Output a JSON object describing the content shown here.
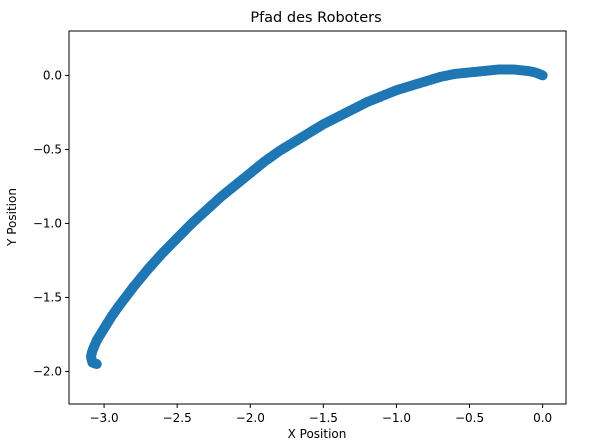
{
  "chart_data": {
    "type": "scatter",
    "title": "Pfad des Roboters",
    "xlabel": "X Position",
    "ylabel": "Y Position",
    "xlim": [
      -3.24,
      0.16
    ],
    "ylim": [
      -2.22,
      0.3
    ],
    "xticks": [
      {
        "value": -3.0,
        "label": "−3.0"
      },
      {
        "value": -2.5,
        "label": "−2.5"
      },
      {
        "value": -2.0,
        "label": "−2.0"
      },
      {
        "value": -1.5,
        "label": "−1.5"
      },
      {
        "value": -1.0,
        "label": "−1.0"
      },
      {
        "value": -0.5,
        "label": "−0.5"
      },
      {
        "value": 0.0,
        "label": "0.0"
      }
    ],
    "yticks": [
      {
        "value": 0.0,
        "label": "0.0"
      },
      {
        "value": -0.5,
        "label": "−0.5"
      },
      {
        "value": -1.0,
        "label": "−1.0"
      },
      {
        "value": -1.5,
        "label": "−1.5"
      },
      {
        "value": -2.0,
        "label": "−2.0"
      }
    ],
    "grid": false,
    "marker_color": "#1f77b4",
    "points": [
      {
        "x": 0.0,
        "y": 0.0
      },
      {
        "x": -0.05,
        "y": 0.02
      },
      {
        "x": -0.1,
        "y": 0.03
      },
      {
        "x": -0.2,
        "y": 0.04
      },
      {
        "x": -0.3,
        "y": 0.04
      },
      {
        "x": -0.4,
        "y": 0.03
      },
      {
        "x": -0.5,
        "y": 0.02
      },
      {
        "x": -0.6,
        "y": 0.01
      },
      {
        "x": -0.7,
        "y": -0.01
      },
      {
        "x": -0.8,
        "y": -0.04
      },
      {
        "x": -0.9,
        "y": -0.07
      },
      {
        "x": -1.0,
        "y": -0.1
      },
      {
        "x": -1.1,
        "y": -0.14
      },
      {
        "x": -1.2,
        "y": -0.18
      },
      {
        "x": -1.3,
        "y": -0.23
      },
      {
        "x": -1.4,
        "y": -0.28
      },
      {
        "x": -1.5,
        "y": -0.33
      },
      {
        "x": -1.6,
        "y": -0.39
      },
      {
        "x": -1.7,
        "y": -0.45
      },
      {
        "x": -1.8,
        "y": -0.51
      },
      {
        "x": -1.9,
        "y": -0.58
      },
      {
        "x": -2.0,
        "y": -0.66
      },
      {
        "x": -2.1,
        "y": -0.74
      },
      {
        "x": -2.2,
        "y": -0.82
      },
      {
        "x": -2.3,
        "y": -0.91
      },
      {
        "x": -2.4,
        "y": -1.0
      },
      {
        "x": -2.5,
        "y": -1.1
      },
      {
        "x": -2.6,
        "y": -1.2
      },
      {
        "x": -2.7,
        "y": -1.31
      },
      {
        "x": -2.8,
        "y": -1.43
      },
      {
        "x": -2.9,
        "y": -1.56
      },
      {
        "x": -2.95,
        "y": -1.63
      },
      {
        "x": -3.0,
        "y": -1.71
      },
      {
        "x": -3.05,
        "y": -1.79
      },
      {
        "x": -3.08,
        "y": -1.86
      },
      {
        "x": -3.09,
        "y": -1.9
      },
      {
        "x": -3.08,
        "y": -1.94
      },
      {
        "x": -3.05,
        "y": -1.95
      }
    ]
  }
}
